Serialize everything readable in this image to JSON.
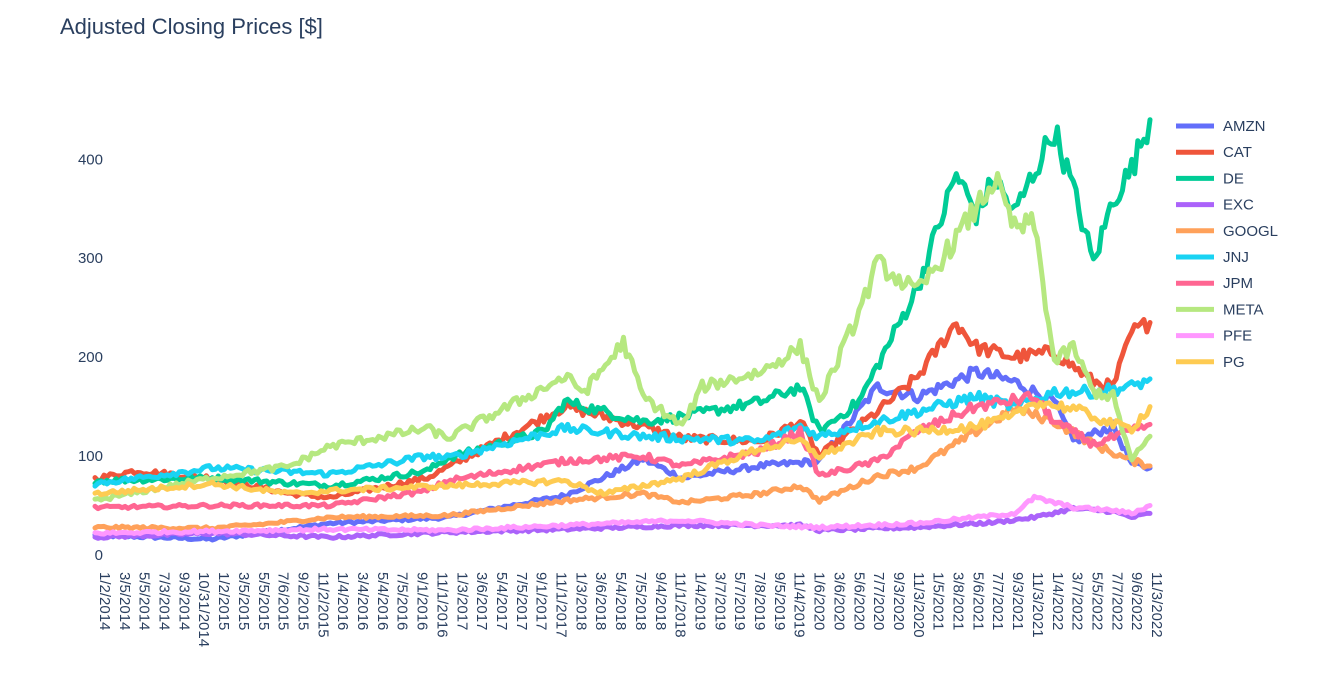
{
  "chart_data": {
    "type": "line",
    "title": "Adjusted Closing Prices [$]",
    "xlabel": "",
    "ylabel": "",
    "ylim": [
      0,
      470
    ],
    "y_ticks": [
      0,
      100,
      200,
      300,
      400
    ],
    "x_ticks": [
      "1/2/2014",
      "3/5/2014",
      "5/5/2014",
      "7/3/2014",
      "9/3/2014",
      "10/31/2014",
      "1/2/2015",
      "3/5/2015",
      "5/5/2015",
      "7/6/2015",
      "9/2/2015",
      "11/2/2015",
      "1/4/2016",
      "3/4/2016",
      "5/4/2016",
      "7/5/2016",
      "9/1/2016",
      "11/1/2016",
      "1/3/2017",
      "3/6/2017",
      "5/4/2017",
      "7/5/2017",
      "9/1/2017",
      "11/1/2017",
      "1/3/2018",
      "3/6/2018",
      "5/4/2018",
      "7/5/2018",
      "9/4/2018",
      "11/1/2018",
      "1/4/2019",
      "3/7/2019",
      "5/7/2019",
      "7/8/2019",
      "9/5/2019",
      "11/4/2019",
      "1/6/2020",
      "3/6/2020",
      "5/6/2020",
      "7/7/2020",
      "9/3/2020",
      "11/3/2020",
      "1/5/2021",
      "3/8/2021",
      "5/6/2021",
      "7/7/2021",
      "9/3/2021",
      "11/3/2021",
      "1/4/2022",
      "3/7/2022",
      "5/5/2022",
      "7/7/2022",
      "9/6/2022",
      "11/3/2022"
    ],
    "legend_position": "right",
    "grid": false,
    "series": [
      {
        "name": "AMZN",
        "color": "#636efa",
        "points": [
          [
            "1/2/2014",
            20
          ],
          [
            "1/2/2015",
            16
          ],
          [
            "1/4/2016",
            32
          ],
          [
            "1/3/2017",
            38
          ],
          [
            "1/3/2018",
            60
          ],
          [
            "9/4/2018",
            97
          ],
          [
            "1/4/2019",
            78
          ],
          [
            "9/5/2019",
            90
          ],
          [
            "3/6/2020",
            95
          ],
          [
            "9/3/2020",
            170
          ],
          [
            "1/5/2021",
            160
          ],
          [
            "7/7/2021",
            185
          ],
          [
            "11/3/2021",
            175
          ],
          [
            "3/7/2022",
            155
          ],
          [
            "5/5/2022",
            115
          ],
          [
            "9/6/2022",
            130
          ],
          [
            "11/3/2022",
            92
          ],
          [
            "12/30/2022",
            88
          ]
        ]
      },
      {
        "name": "CAT",
        "color": "#ef553b",
        "points": [
          [
            "1/2/2014",
            77
          ],
          [
            "5/5/2014",
            85
          ],
          [
            "1/2/2015",
            78
          ],
          [
            "9/2/2015",
            62
          ],
          [
            "1/4/2016",
            58
          ],
          [
            "11/1/2016",
            78
          ],
          [
            "1/3/2018",
            150
          ],
          [
            "9/4/2018",
            130
          ],
          [
            "1/4/2019",
            118
          ],
          [
            "9/5/2019",
            115
          ],
          [
            "1/6/2020",
            135
          ],
          [
            "3/6/2020",
            100
          ],
          [
            "9/3/2020",
            145
          ],
          [
            "1/5/2021",
            180
          ],
          [
            "5/6/2021",
            235
          ],
          [
            "7/7/2021",
            210
          ],
          [
            "11/3/2021",
            200
          ],
          [
            "3/7/2022",
            205
          ],
          [
            "7/7/2022",
            175
          ],
          [
            "9/6/2022",
            170
          ],
          [
            "11/3/2022",
            225
          ],
          [
            "12/30/2022",
            235
          ]
        ]
      },
      {
        "name": "DE",
        "color": "#00cc96",
        "points": [
          [
            "1/2/2014",
            75
          ],
          [
            "1/2/2015",
            78
          ],
          [
            "1/4/2016",
            70
          ],
          [
            "11/1/2016",
            85
          ],
          [
            "1/3/2017",
            98
          ],
          [
            "11/1/2017",
            125
          ],
          [
            "1/3/2018",
            155
          ],
          [
            "9/4/2018",
            135
          ],
          [
            "1/4/2019",
            140
          ],
          [
            "9/5/2019",
            155
          ],
          [
            "1/6/2020",
            170
          ],
          [
            "3/6/2020",
            125
          ],
          [
            "7/7/2020",
            155
          ],
          [
            "11/3/2020",
            230
          ],
          [
            "1/5/2021",
            270
          ],
          [
            "5/6/2021",
            385
          ],
          [
            "7/7/2021",
            345
          ],
          [
            "9/3/2021",
            380
          ],
          [
            "11/3/2021",
            345
          ],
          [
            "3/7/2022",
            430
          ],
          [
            "5/5/2022",
            370
          ],
          [
            "7/7/2022",
            295
          ],
          [
            "9/6/2022",
            360
          ],
          [
            "11/3/2022",
            390
          ],
          [
            "12/30/2022",
            440
          ]
        ]
      },
      {
        "name": "EXC",
        "color": "#ab63fa",
        "points": [
          [
            "1/2/2014",
            18
          ],
          [
            "1/2/2015",
            22
          ],
          [
            "1/4/2016",
            18
          ],
          [
            "1/3/2017",
            23
          ],
          [
            "1/3/2018",
            26
          ],
          [
            "1/4/2019",
            30
          ],
          [
            "1/6/2020",
            30
          ],
          [
            "3/6/2020",
            25
          ],
          [
            "1/5/2021",
            28
          ],
          [
            "9/3/2021",
            33
          ],
          [
            "1/4/2022",
            38
          ],
          [
            "5/5/2022",
            47
          ],
          [
            "9/6/2022",
            44
          ],
          [
            "11/3/2022",
            38
          ],
          [
            "12/30/2022",
            42
          ]
        ]
      },
      {
        "name": "GOOGL",
        "color": "#ffa15a",
        "points": [
          [
            "1/2/2014",
            28
          ],
          [
            "1/2/2015",
            27
          ],
          [
            "7/6/2015",
            32
          ],
          [
            "1/4/2016",
            38
          ],
          [
            "1/3/2017",
            40
          ],
          [
            "1/3/2018",
            55
          ],
          [
            "9/4/2018",
            62
          ],
          [
            "1/4/2019",
            53
          ],
          [
            "9/5/2019",
            62
          ],
          [
            "1/6/2020",
            70
          ],
          [
            "3/6/2020",
            55
          ],
          [
            "9/3/2020",
            80
          ],
          [
            "1/5/2021",
            88
          ],
          [
            "7/7/2021",
            125
          ],
          [
            "11/3/2021",
            148
          ],
          [
            "3/7/2022",
            135
          ],
          [
            "7/7/2022",
            112
          ],
          [
            "11/3/2022",
            95
          ],
          [
            "12/30/2022",
            90
          ]
        ]
      },
      {
        "name": "JNJ",
        "color": "#19d3f3",
        "points": [
          [
            "1/2/2014",
            72
          ],
          [
            "1/2/2015",
            88
          ],
          [
            "1/4/2016",
            82
          ],
          [
            "11/1/2016",
            100
          ],
          [
            "1/3/2017",
            98
          ],
          [
            "1/3/2018",
            128
          ],
          [
            "9/4/2018",
            120
          ],
          [
            "1/4/2019",
            118
          ],
          [
            "9/5/2019",
            115
          ],
          [
            "1/6/2020",
            130
          ],
          [
            "3/6/2020",
            120
          ],
          [
            "9/3/2020",
            135
          ],
          [
            "1/5/2021",
            145
          ],
          [
            "7/7/2021",
            160
          ],
          [
            "11/3/2021",
            150
          ],
          [
            "3/7/2022",
            165
          ],
          [
            "7/7/2022",
            165
          ],
          [
            "11/3/2022",
            170
          ],
          [
            "12/30/2022",
            178
          ]
        ]
      },
      {
        "name": "JPM",
        "color": "#ff6692",
        "points": [
          [
            "1/2/2014",
            48
          ],
          [
            "1/2/2015",
            50
          ],
          [
            "1/4/2016",
            50
          ],
          [
            "11/1/2016",
            65
          ],
          [
            "1/3/2017",
            75
          ],
          [
            "1/3/2018",
            95
          ],
          [
            "9/4/2018",
            100
          ],
          [
            "1/4/2019",
            90
          ],
          [
            "9/5/2019",
            105
          ],
          [
            "1/6/2020",
            125
          ],
          [
            "3/6/2020",
            80
          ],
          [
            "9/3/2020",
            95
          ],
          [
            "1/5/2021",
            125
          ],
          [
            "7/7/2021",
            150
          ],
          [
            "1/4/2022",
            160
          ],
          [
            "3/7/2022",
            135
          ],
          [
            "7/7/2022",
            112
          ],
          [
            "11/3/2022",
            125
          ],
          [
            "12/30/2022",
            132
          ]
        ]
      },
      {
        "name": "META",
        "color": "#b6e880",
        "points": [
          [
            "1/2/2014",
            55
          ],
          [
            "1/2/2015",
            78
          ],
          [
            "9/2/2015",
            90
          ],
          [
            "1/4/2016",
            110
          ],
          [
            "11/1/2016",
            128
          ],
          [
            "1/3/2017",
            118
          ],
          [
            "1/3/2018",
            180
          ],
          [
            "3/6/2018",
            165
          ],
          [
            "7/5/2018",
            215
          ],
          [
            "9/4/2018",
            160
          ],
          [
            "1/4/2019",
            130
          ],
          [
            "3/7/2019",
            170
          ],
          [
            "9/5/2019",
            185
          ],
          [
            "1/6/2020",
            210
          ],
          [
            "3/6/2020",
            155
          ],
          [
            "7/7/2020",
            245
          ],
          [
            "9/3/2020",
            295
          ],
          [
            "1/5/2021",
            265
          ],
          [
            "5/6/2021",
            320
          ],
          [
            "9/3/2021",
            380
          ],
          [
            "11/3/2021",
            330
          ],
          [
            "1/4/2022",
            335
          ],
          [
            "3/7/2022",
            195
          ],
          [
            "5/5/2022",
            210
          ],
          [
            "7/7/2022",
            165
          ],
          [
            "9/6/2022",
            160
          ],
          [
            "11/3/2022",
            95
          ],
          [
            "12/30/2022",
            120
          ]
        ]
      },
      {
        "name": "PFE",
        "color": "#ff97ff",
        "points": [
          [
            "1/2/2014",
            22
          ],
          [
            "1/2/2015",
            24
          ],
          [
            "1/4/2016",
            26
          ],
          [
            "1/3/2017",
            25
          ],
          [
            "1/3/2018",
            30
          ],
          [
            "1/4/2019",
            35
          ],
          [
            "9/5/2019",
            30
          ],
          [
            "3/6/2020",
            28
          ],
          [
            "1/5/2021",
            32
          ],
          [
            "11/3/2021",
            42
          ],
          [
            "1/4/2022",
            58
          ],
          [
            "5/5/2022",
            48
          ],
          [
            "9/6/2022",
            45
          ],
          [
            "11/3/2022",
            42
          ],
          [
            "12/30/2022",
            50
          ]
        ]
      },
      {
        "name": "PG",
        "color": "#fecb52",
        "points": [
          [
            "1/2/2014",
            62
          ],
          [
            "1/2/2015",
            72
          ],
          [
            "9/2/2015",
            62
          ],
          [
            "1/4/2016",
            65
          ],
          [
            "1/3/2017",
            70
          ],
          [
            "1/3/2018",
            75
          ],
          [
            "5/4/2018",
            62
          ],
          [
            "1/4/2019",
            78
          ],
          [
            "9/5/2019",
            108
          ],
          [
            "1/6/2020",
            115
          ],
          [
            "3/6/2020",
            100
          ],
          [
            "9/3/2020",
            125
          ],
          [
            "1/5/2021",
            125
          ],
          [
            "7/7/2021",
            130
          ],
          [
            "11/3/2021",
            140
          ],
          [
            "1/4/2022",
            155
          ],
          [
            "5/5/2022",
            148
          ],
          [
            "9/6/2022",
            132
          ],
          [
            "11/3/2022",
            128
          ],
          [
            "12/30/2022",
            150
          ]
        ]
      }
    ]
  }
}
